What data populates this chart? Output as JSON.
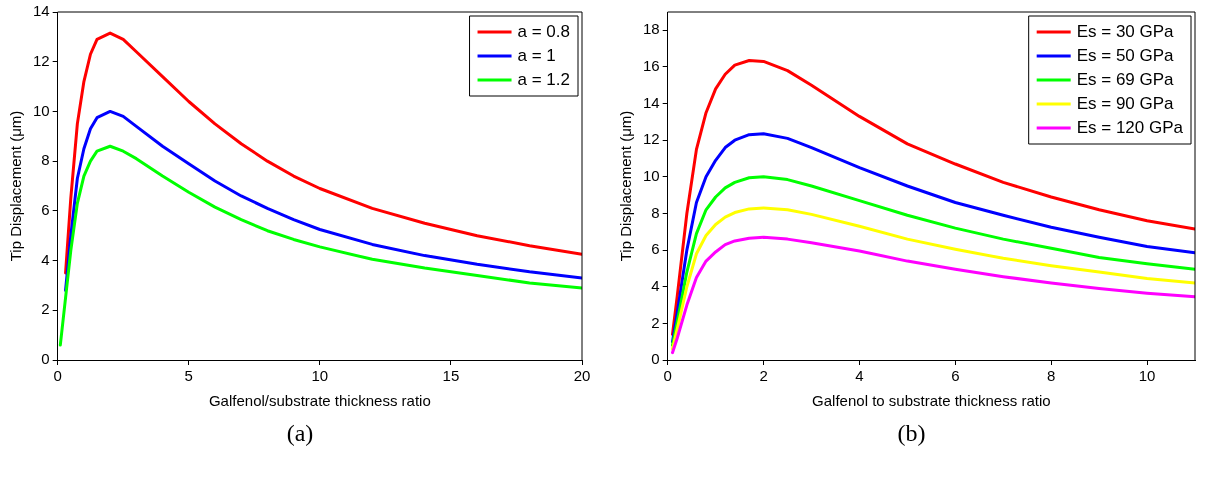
{
  "chart_data": [
    {
      "type": "line",
      "xlabel": "Galfenol/substrate thickness ratio",
      "ylabel": "Tip Displacement (μm)",
      "annotations": [
        "(a)"
      ],
      "x": [
        0.1,
        0.3,
        0.5,
        0.75,
        1,
        1.25,
        1.5,
        2,
        2.5,
        3,
        4,
        5,
        6,
        7,
        8,
        9,
        10,
        12,
        14,
        16,
        18,
        20
      ],
      "xlim": [
        0,
        20
      ],
      "xticks": [
        0,
        5,
        10,
        15,
        20
      ],
      "ylim": [
        0,
        14
      ],
      "yticks": [
        0,
        2,
        4,
        6,
        8,
        10,
        12,
        14
      ],
      "grid": false,
      "legend": "top right",
      "line_style": "solid",
      "marker": "none",
      "series": [
        {
          "name": "a = 0.8",
          "color": "#ff0000",
          "values": [
            null,
            3.5,
            6.5,
            9.5,
            11.2,
            12.3,
            12.9,
            13.15,
            12.9,
            12.4,
            11.4,
            10.4,
            9.5,
            8.7,
            8.0,
            7.4,
            6.9,
            6.1,
            5.5,
            5.0,
            4.6,
            4.25
          ]
        },
        {
          "name": "a = 1",
          "color": "#0000ff",
          "values": [
            null,
            2.8,
            5.0,
            7.3,
            8.5,
            9.3,
            9.75,
            10.0,
            9.8,
            9.4,
            8.6,
            7.9,
            7.2,
            6.6,
            6.1,
            5.65,
            5.25,
            4.65,
            4.2,
            3.85,
            3.55,
            3.3
          ]
        },
        {
          "name": "a = 1.2",
          "color": "#00ff00",
          "values": [
            0.6,
            2.5,
            4.4,
            6.3,
            7.4,
            8.0,
            8.4,
            8.6,
            8.4,
            8.1,
            7.4,
            6.75,
            6.15,
            5.65,
            5.2,
            4.85,
            4.55,
            4.05,
            3.7,
            3.4,
            3.1,
            2.9
          ]
        }
      ]
    },
    {
      "type": "line",
      "xlabel": "Galfenol to substrate thickness ratio",
      "ylabel": "Tip Displacement (μm)",
      "annotations": [
        "(b)"
      ],
      "x": [
        0.1,
        0.2,
        0.4,
        0.6,
        0.8,
        1,
        1.2,
        1.4,
        1.7,
        2,
        2.5,
        3,
        4,
        5,
        6,
        7,
        8,
        9,
        10,
        11
      ],
      "xlim": [
        0,
        11
      ],
      "xticks": [
        0,
        2,
        4,
        6,
        8,
        10
      ],
      "ylim": [
        0,
        19
      ],
      "yticks": [
        0,
        2,
        4,
        6,
        8,
        10,
        12,
        14,
        16,
        18
      ],
      "grid": false,
      "legend": "top right",
      "line_style": "solid",
      "marker": "none",
      "series": [
        {
          "name": "Es = 30 GPa",
          "color": "#ff0000",
          "values": [
            1.4,
            3.5,
            8,
            11.5,
            13.5,
            14.8,
            15.6,
            16.1,
            16.35,
            16.3,
            15.8,
            15.0,
            13.3,
            11.8,
            10.7,
            9.7,
            8.9,
            8.2,
            7.6,
            7.15
          ]
        },
        {
          "name": "Es = 50 GPa",
          "color": "#0000ff",
          "values": [
            1.0,
            2.6,
            6,
            8.6,
            10.0,
            10.9,
            11.6,
            12.0,
            12.3,
            12.35,
            12.1,
            11.6,
            10.5,
            9.5,
            8.6,
            7.9,
            7.25,
            6.7,
            6.2,
            5.85
          ]
        },
        {
          "name": "Es = 69 GPa",
          "color": "#00ff00",
          "values": [
            0.8,
            2.1,
            4.8,
            6.9,
            8.2,
            8.9,
            9.4,
            9.7,
            9.95,
            10.0,
            9.85,
            9.5,
            8.7,
            7.9,
            7.2,
            6.6,
            6.1,
            5.6,
            5.25,
            4.95
          ]
        },
        {
          "name": "Es = 90 GPa",
          "color": "#ffff00",
          "values": [
            0.6,
            1.7,
            4.0,
            5.8,
            6.8,
            7.4,
            7.8,
            8.05,
            8.25,
            8.3,
            8.2,
            7.95,
            7.3,
            6.6,
            6.05,
            5.55,
            5.15,
            4.8,
            4.45,
            4.2
          ]
        },
        {
          "name": "Es = 120 GPa",
          "color": "#ff00ff",
          "values": [
            0.4,
            1.2,
            3.0,
            4.5,
            5.4,
            5.9,
            6.3,
            6.5,
            6.65,
            6.7,
            6.6,
            6.4,
            5.95,
            5.4,
            4.95,
            4.55,
            4.2,
            3.9,
            3.65,
            3.45
          ]
        }
      ]
    }
  ]
}
